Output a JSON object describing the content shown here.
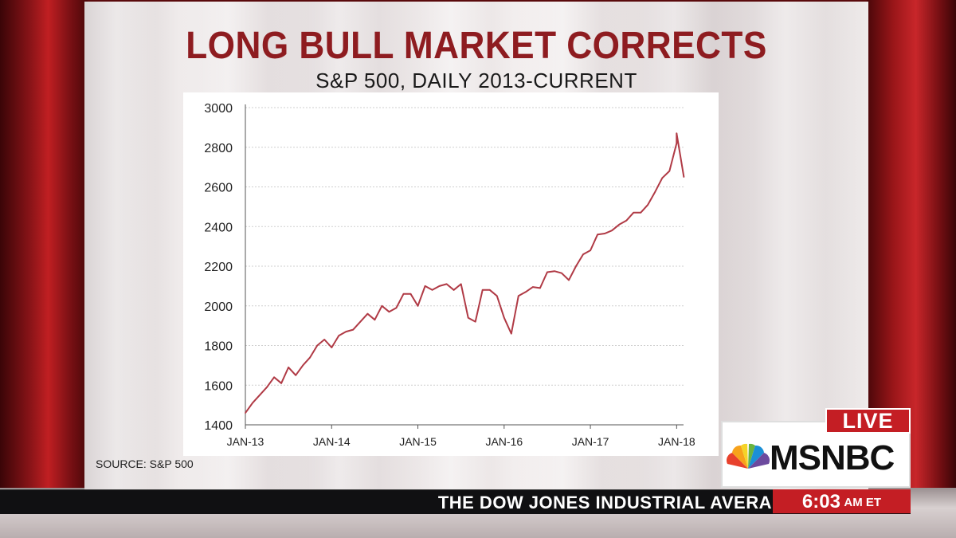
{
  "title": "LONG BULL MARKET CORRECTS",
  "subtitle": "S&P 500, DAILY 2013-CURRENT",
  "source": "SOURCE: S&P 500",
  "ticker": {
    "text": "THE DOW JONES INDUSTRIAL AVERA",
    "time": "6:03",
    "time_suffix": "AM ET"
  },
  "network": {
    "live_label": "LIVE",
    "name": "MSNBC"
  },
  "colors": {
    "line": "#b03a45",
    "title": "#8e1c20",
    "accent_red": "#c41e24"
  },
  "chart_data": {
    "type": "line",
    "title": "LONG BULL MARKET CORRECTS",
    "subtitle": "S&P 500, DAILY 2013-CURRENT",
    "xlabel": "",
    "ylabel": "",
    "ylim": [
      1400,
      3000
    ],
    "yticks": [
      1400,
      1600,
      1800,
      2000,
      2200,
      2400,
      2600,
      2800,
      3000
    ],
    "xticks": [
      "JAN-13",
      "JAN-14",
      "JAN-15",
      "JAN-16",
      "JAN-17",
      "JAN-18"
    ],
    "xrange": [
      "2013-01",
      "2018-02"
    ],
    "grid": true,
    "legend": "none",
    "series": [
      {
        "name": "",
        "x": [
          "2013-01",
          "2013-02",
          "2013-03",
          "2013-04",
          "2013-05",
          "2013-06",
          "2013-07",
          "2013-08",
          "2013-09",
          "2013-10",
          "2013-11",
          "2013-12",
          "2014-01",
          "2014-02",
          "2014-03",
          "2014-04",
          "2014-05",
          "2014-06",
          "2014-07",
          "2014-08",
          "2014-09",
          "2014-10",
          "2014-11",
          "2014-12",
          "2015-01",
          "2015-02",
          "2015-03",
          "2015-04",
          "2015-05",
          "2015-06",
          "2015-07",
          "2015-08",
          "2015-09",
          "2015-10",
          "2015-11",
          "2015-12",
          "2016-01",
          "2016-02",
          "2016-03",
          "2016-04",
          "2016-05",
          "2016-06",
          "2016-07",
          "2016-08",
          "2016-09",
          "2016-10",
          "2016-11",
          "2016-12",
          "2017-01",
          "2017-02",
          "2017-03",
          "2017-04",
          "2017-05",
          "2017-06",
          "2017-07",
          "2017-08",
          "2017-09",
          "2017-10",
          "2017-11",
          "2017-12",
          "2018-01",
          "2018-01b",
          "2018-02"
        ],
        "values": [
          1460,
          1510,
          1550,
          1590,
          1640,
          1610,
          1690,
          1650,
          1700,
          1740,
          1800,
          1830,
          1790,
          1850,
          1870,
          1880,
          1920,
          1960,
          1930,
          2000,
          1970,
          1990,
          2060,
          2060,
          2000,
          2100,
          2080,
          2100,
          2110,
          2080,
          2110,
          1940,
          1920,
          2080,
          2080,
          2050,
          1940,
          1860,
          2050,
          2070,
          2095,
          2090,
          2170,
          2175,
          2165,
          2130,
          2200,
          2260,
          2280,
          2360,
          2365,
          2380,
          2410,
          2430,
          2470,
          2470,
          2510,
          2575,
          2645,
          2680,
          2820,
          2870,
          2650
        ]
      }
    ]
  }
}
